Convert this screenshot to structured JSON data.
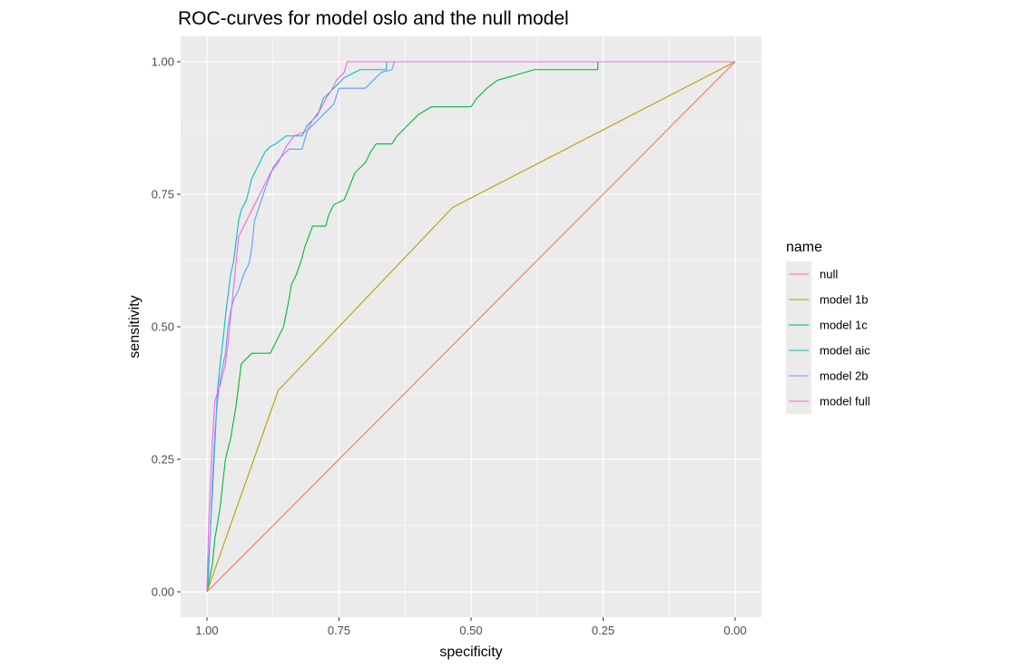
{
  "chart_data": {
    "type": "line",
    "title": "ROC-curves for model oslo and the null model",
    "xlabel": "specificity",
    "ylabel": "sensitivity",
    "x_reversed": true,
    "xlim": [
      1.0,
      0.0
    ],
    "ylim": [
      0.0,
      1.0
    ],
    "xticks": [
      "1.00",
      "0.75",
      "0.50",
      "0.25",
      "0.00"
    ],
    "yticks": [
      "0.00",
      "0.25",
      "0.50",
      "0.75",
      "1.00"
    ],
    "grid": true,
    "background": "#EBEBEB",
    "legend": {
      "title": "name",
      "position": "right"
    },
    "series": [
      {
        "name": "null",
        "color": "#F8766D",
        "points": [
          [
            1.0,
            0.0
          ],
          [
            0.0,
            1.0
          ]
        ]
      },
      {
        "name": "model 1b",
        "color": "#B79F00",
        "points": [
          [
            1.0,
            0.0
          ],
          [
            0.865,
            0.38
          ],
          [
            0.535,
            0.725
          ],
          [
            0.0,
            1.0
          ]
        ]
      },
      {
        "name": "model 1c",
        "color": "#00BA38",
        "points": [
          [
            1.0,
            0.0
          ],
          [
            0.99,
            0.05
          ],
          [
            0.985,
            0.1
          ],
          [
            0.975,
            0.16
          ],
          [
            0.965,
            0.25
          ],
          [
            0.955,
            0.29
          ],
          [
            0.945,
            0.35
          ],
          [
            0.935,
            0.43
          ],
          [
            0.915,
            0.45
          ],
          [
            0.88,
            0.45
          ],
          [
            0.865,
            0.48
          ],
          [
            0.855,
            0.5
          ],
          [
            0.845,
            0.55
          ],
          [
            0.84,
            0.58
          ],
          [
            0.83,
            0.6
          ],
          [
            0.82,
            0.63
          ],
          [
            0.815,
            0.65
          ],
          [
            0.8,
            0.69
          ],
          [
            0.775,
            0.69
          ],
          [
            0.77,
            0.71
          ],
          [
            0.76,
            0.73
          ],
          [
            0.74,
            0.74
          ],
          [
            0.72,
            0.79
          ],
          [
            0.7,
            0.81
          ],
          [
            0.69,
            0.83
          ],
          [
            0.68,
            0.845
          ],
          [
            0.65,
            0.845
          ],
          [
            0.64,
            0.86
          ],
          [
            0.62,
            0.88
          ],
          [
            0.6,
            0.9
          ],
          [
            0.575,
            0.915
          ],
          [
            0.5,
            0.915
          ],
          [
            0.49,
            0.93
          ],
          [
            0.47,
            0.95
          ],
          [
            0.45,
            0.965
          ],
          [
            0.38,
            0.985
          ],
          [
            0.26,
            0.985
          ],
          [
            0.26,
            1.0
          ],
          [
            0.0,
            1.0
          ]
        ]
      },
      {
        "name": "model aic",
        "color": "#00BFC4",
        "points": [
          [
            1.0,
            0.0
          ],
          [
            0.997,
            0.05
          ],
          [
            0.99,
            0.18
          ],
          [
            0.985,
            0.28
          ],
          [
            0.98,
            0.38
          ],
          [
            0.975,
            0.43
          ],
          [
            0.97,
            0.47
          ],
          [
            0.965,
            0.52
          ],
          [
            0.96,
            0.56
          ],
          [
            0.955,
            0.6
          ],
          [
            0.95,
            0.62
          ],
          [
            0.945,
            0.66
          ],
          [
            0.94,
            0.7
          ],
          [
            0.935,
            0.72
          ],
          [
            0.925,
            0.74
          ],
          [
            0.915,
            0.78
          ],
          [
            0.9,
            0.81
          ],
          [
            0.89,
            0.83
          ],
          [
            0.88,
            0.84
          ],
          [
            0.87,
            0.845
          ],
          [
            0.85,
            0.86
          ],
          [
            0.82,
            0.86
          ],
          [
            0.81,
            0.88
          ],
          [
            0.79,
            0.9
          ],
          [
            0.78,
            0.93
          ],
          [
            0.76,
            0.95
          ],
          [
            0.74,
            0.97
          ],
          [
            0.71,
            0.985
          ],
          [
            0.66,
            0.985
          ],
          [
            0.66,
            1.0
          ],
          [
            0.0,
            1.0
          ]
        ]
      },
      {
        "name": "model 2b",
        "color": "#619CFF",
        "points": [
          [
            1.0,
            0.0
          ],
          [
            0.997,
            0.03
          ],
          [
            0.99,
            0.2
          ],
          [
            0.985,
            0.3
          ],
          [
            0.98,
            0.36
          ],
          [
            0.975,
            0.4
          ],
          [
            0.965,
            0.45
          ],
          [
            0.96,
            0.5
          ],
          [
            0.955,
            0.53
          ],
          [
            0.95,
            0.55
          ],
          [
            0.94,
            0.57
          ],
          [
            0.93,
            0.6
          ],
          [
            0.92,
            0.62
          ],
          [
            0.915,
            0.65
          ],
          [
            0.91,
            0.7
          ],
          [
            0.9,
            0.73
          ],
          [
            0.89,
            0.76
          ],
          [
            0.875,
            0.8
          ],
          [
            0.86,
            0.82
          ],
          [
            0.845,
            0.835
          ],
          [
            0.82,
            0.835
          ],
          [
            0.81,
            0.87
          ],
          [
            0.79,
            0.89
          ],
          [
            0.77,
            0.91
          ],
          [
            0.76,
            0.92
          ],
          [
            0.75,
            0.95
          ],
          [
            0.7,
            0.95
          ],
          [
            0.685,
            0.965
          ],
          [
            0.67,
            0.98
          ],
          [
            0.65,
            0.985
          ],
          [
            0.645,
            1.0
          ],
          [
            0.0,
            1.0
          ]
        ]
      },
      {
        "name": "model full",
        "color": "#F564E3",
        "points": [
          [
            1.0,
            0.0
          ],
          [
            0.997,
            0.12
          ],
          [
            0.99,
            0.28
          ],
          [
            0.985,
            0.36
          ],
          [
            0.975,
            0.39
          ],
          [
            0.965,
            0.43
          ],
          [
            0.96,
            0.47
          ],
          [
            0.955,
            0.52
          ],
          [
            0.95,
            0.57
          ],
          [
            0.945,
            0.62
          ],
          [
            0.94,
            0.67
          ],
          [
            0.93,
            0.69
          ],
          [
            0.92,
            0.71
          ],
          [
            0.91,
            0.73
          ],
          [
            0.9,
            0.75
          ],
          [
            0.89,
            0.77
          ],
          [
            0.88,
            0.79
          ],
          [
            0.865,
            0.81
          ],
          [
            0.85,
            0.84
          ],
          [
            0.835,
            0.86
          ],
          [
            0.81,
            0.87
          ],
          [
            0.8,
            0.89
          ],
          [
            0.785,
            0.91
          ],
          [
            0.775,
            0.93
          ],
          [
            0.765,
            0.945
          ],
          [
            0.755,
            0.965
          ],
          [
            0.74,
            0.98
          ],
          [
            0.735,
            1.0
          ],
          [
            0.0,
            1.0
          ]
        ]
      }
    ]
  }
}
